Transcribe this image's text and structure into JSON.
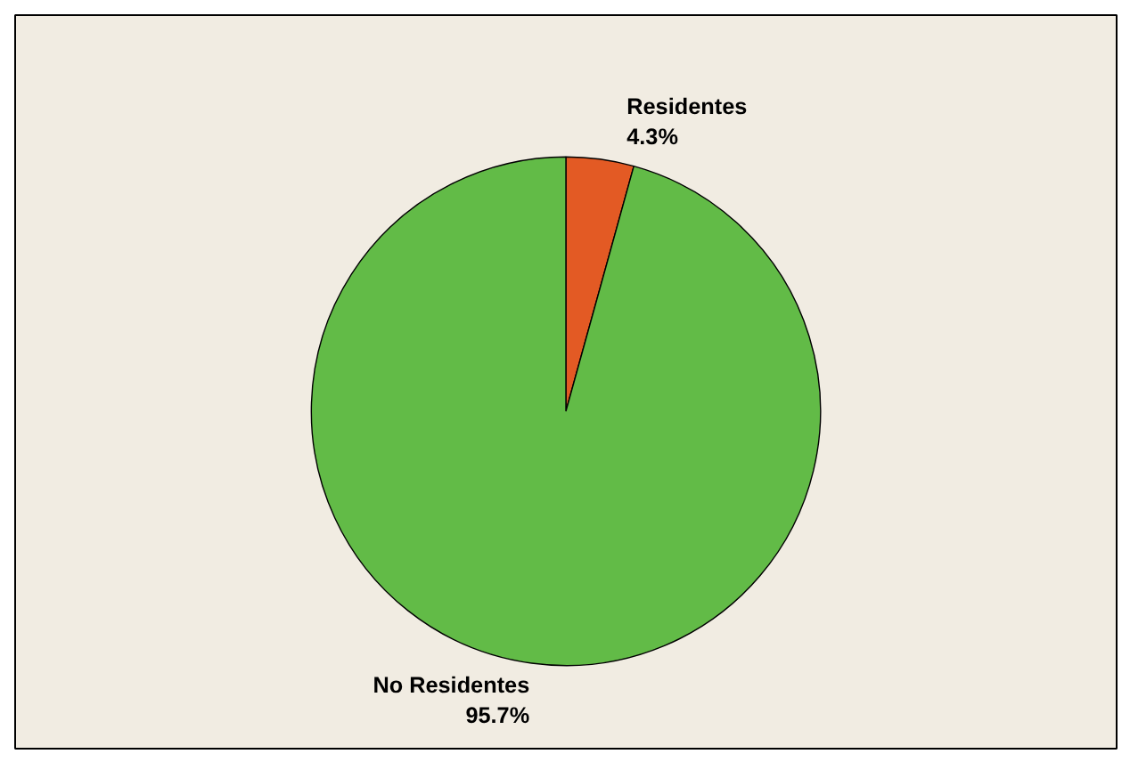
{
  "chart_data": {
    "type": "pie",
    "categories": [
      "Residentes",
      "No Residentes"
    ],
    "values": [
      4.3,
      95.7
    ],
    "colors": [
      "#e35a24",
      "#62bb47"
    ],
    "value_labels": [
      "4.3%",
      "95.7%"
    ]
  }
}
